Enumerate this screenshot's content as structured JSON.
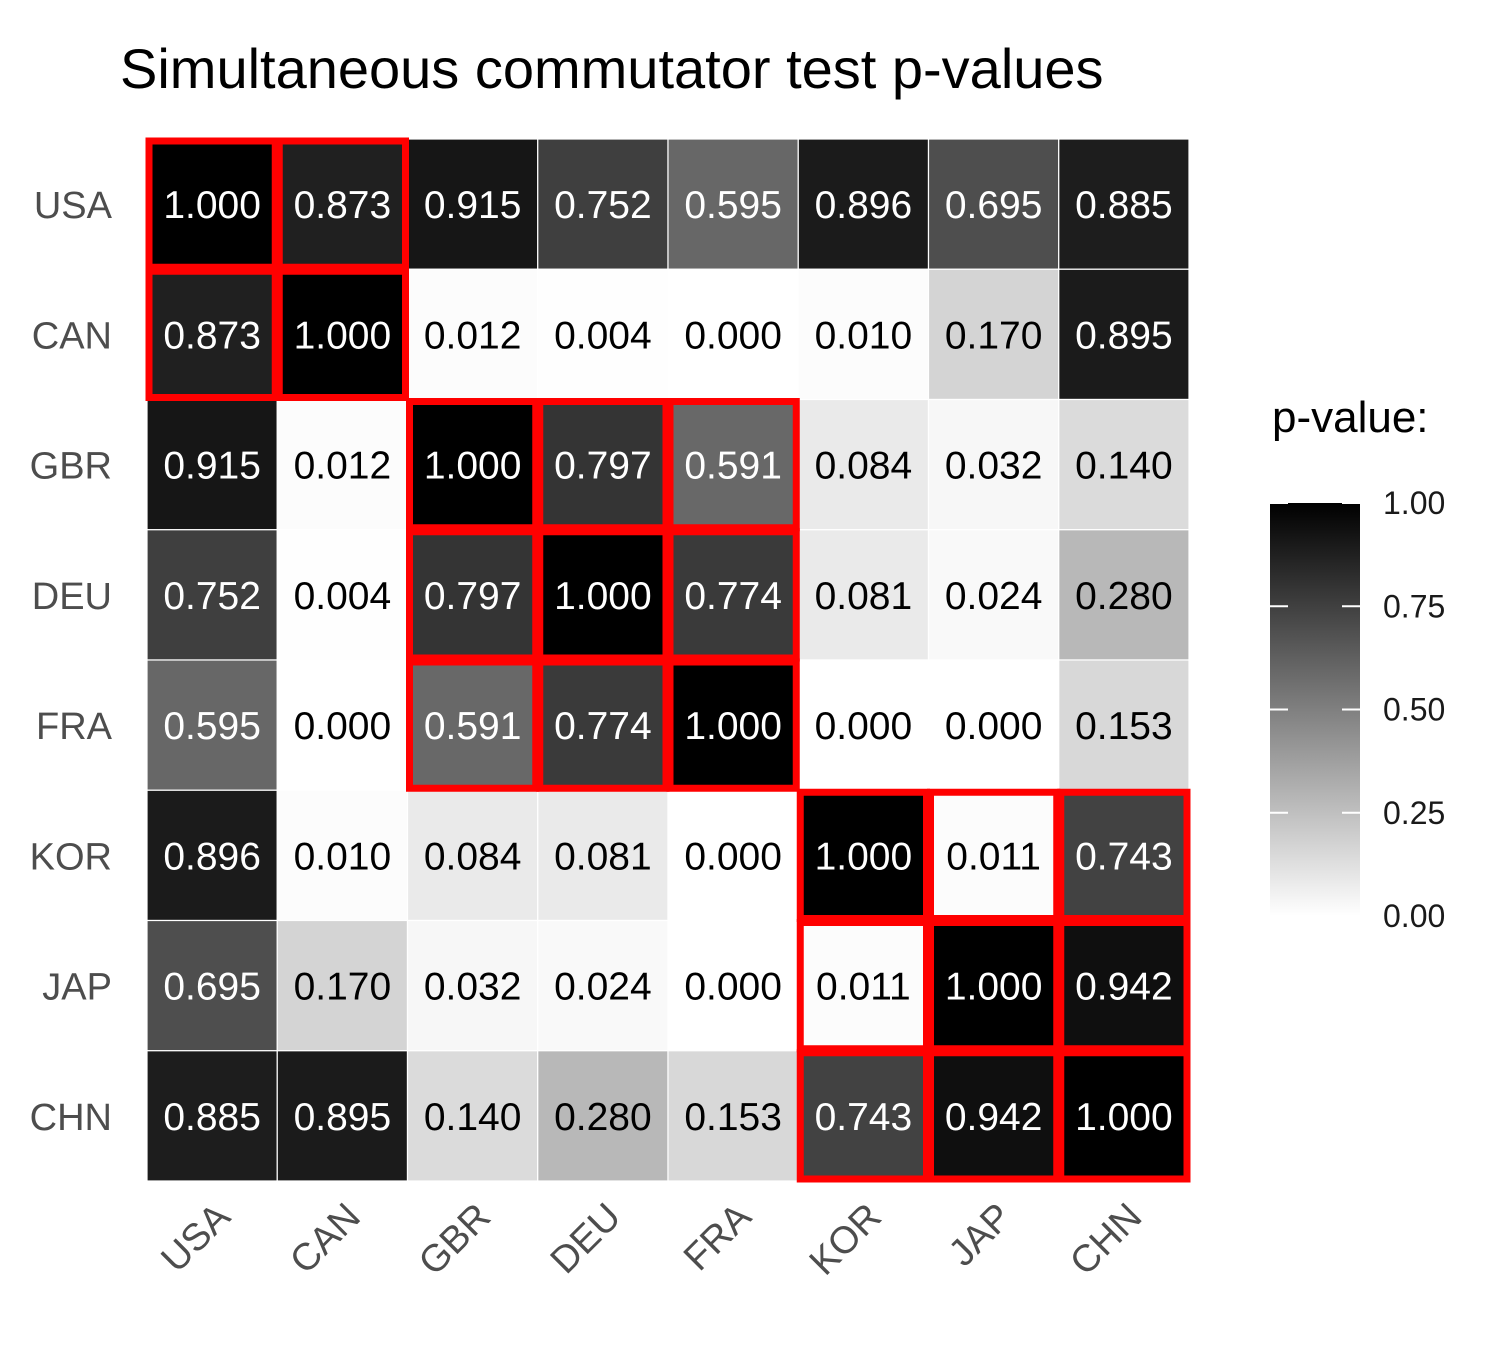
{
  "chart_data": {
    "type": "heatmap",
    "title": "Simultaneous commutator test p-values",
    "x_categories": [
      "USA",
      "CAN",
      "GBR",
      "DEU",
      "FRA",
      "KOR",
      "JAP",
      "CHN"
    ],
    "y_categories": [
      "USA",
      "CAN",
      "GBR",
      "DEU",
      "FRA",
      "KOR",
      "JAP",
      "CHN"
    ],
    "values": [
      [
        1.0,
        0.873,
        0.915,
        0.752,
        0.595,
        0.896,
        0.695,
        0.885
      ],
      [
        0.873,
        1.0,
        0.012,
        0.004,
        0.0,
        0.01,
        0.17,
        0.895
      ],
      [
        0.915,
        0.012,
        1.0,
        0.797,
        0.591,
        0.084,
        0.032,
        0.14
      ],
      [
        0.752,
        0.004,
        0.797,
        1.0,
        0.774,
        0.081,
        0.024,
        0.28
      ],
      [
        0.595,
        0.0,
        0.591,
        0.774,
        1.0,
        0.0,
        0.0,
        0.153
      ],
      [
        0.896,
        0.01,
        0.084,
        0.081,
        0.0,
        1.0,
        0.011,
        0.743
      ],
      [
        0.695,
        0.17,
        0.032,
        0.024,
        0.0,
        0.011,
        1.0,
        0.942
      ],
      [
        0.885,
        0.895,
        0.14,
        0.28,
        0.153,
        0.743,
        0.942,
        1.0
      ]
    ],
    "value_labels": [
      [
        "1.000",
        "0.873",
        "0.915",
        "0.752",
        "0.595",
        "0.896",
        "0.695",
        "0.885"
      ],
      [
        "0.873",
        "1.000",
        "0.012",
        "0.004",
        "0.000",
        "0.010",
        "0.170",
        "0.895"
      ],
      [
        "0.915",
        "0.012",
        "1.000",
        "0.797",
        "0.591",
        "0.084",
        "0.032",
        "0.140"
      ],
      [
        "0.752",
        "0.004",
        "0.797",
        "1.000",
        "0.774",
        "0.081",
        "0.024",
        "0.280"
      ],
      [
        "0.595",
        "0.000",
        "0.591",
        "0.774",
        "1.000",
        "0.000",
        "0.000",
        "0.153"
      ],
      [
        "0.896",
        "0.010",
        "0.084",
        "0.081",
        "0.000",
        "1.000",
        "0.011",
        "0.743"
      ],
      [
        "0.695",
        "0.170",
        "0.032",
        "0.024",
        "0.000",
        "0.011",
        "1.000",
        "0.942"
      ],
      [
        "0.885",
        "0.895",
        "0.140",
        "0.280",
        "0.153",
        "0.743",
        "0.942",
        "1.000"
      ]
    ],
    "highlight_groups": [
      [
        "USA",
        "CAN"
      ],
      [
        "GBR",
        "DEU",
        "FRA"
      ],
      [
        "KOR",
        "JAP",
        "CHN"
      ]
    ],
    "highlight_color": "#ff0000",
    "color_scale": {
      "low": "#ffffff",
      "high": "#000000",
      "range": [
        0,
        1
      ]
    },
    "legend": {
      "title": "p-value:",
      "ticks": [
        1.0,
        0.75,
        0.5,
        0.25,
        0.0
      ],
      "tick_labels": [
        "1.00",
        "0.75",
        "0.50",
        "0.25",
        "0.00"
      ],
      "position": "right"
    }
  }
}
